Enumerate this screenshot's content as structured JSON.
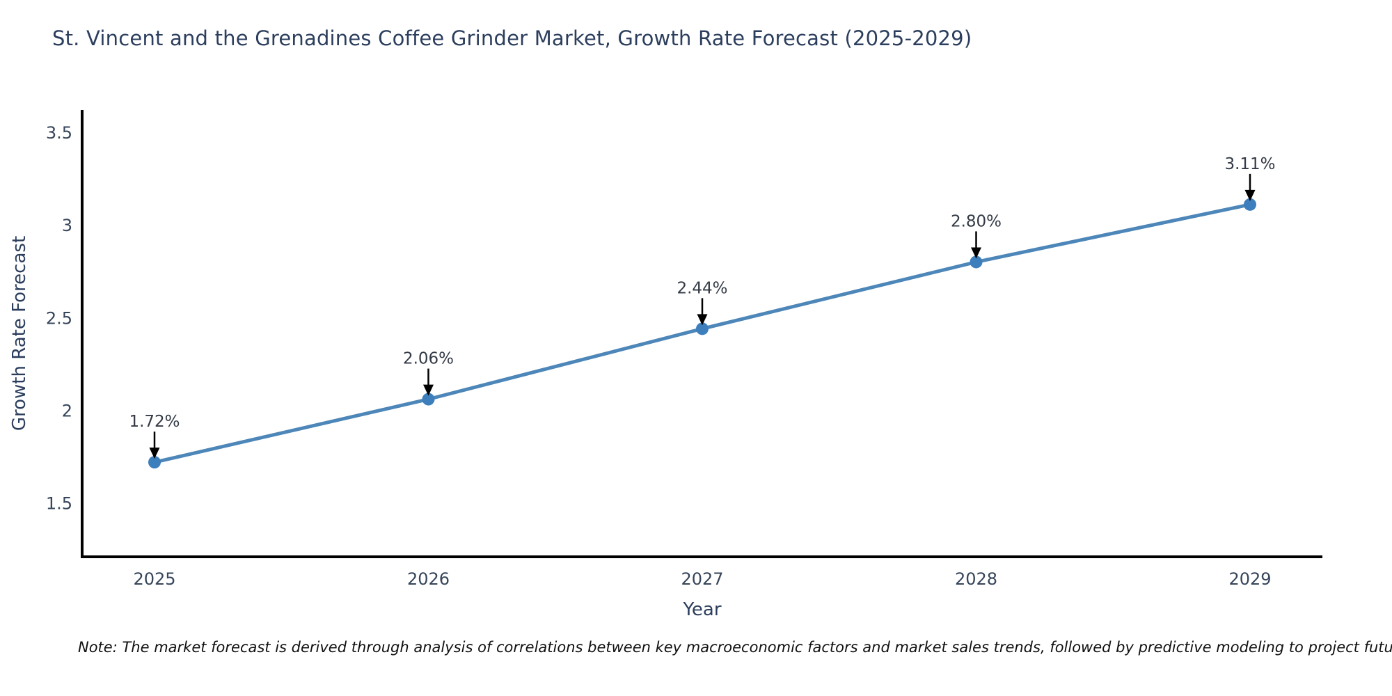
{
  "chart_data": {
    "type": "line",
    "title": "St. Vincent and the Grenadines Coffee Grinder Market, Growth Rate Forecast (2025-2029)",
    "xlabel": "Year",
    "ylabel": "Growth Rate Forecast",
    "categories": [
      "2025",
      "2026",
      "2027",
      "2028",
      "2029"
    ],
    "values": [
      1.72,
      2.06,
      2.44,
      2.8,
      3.11
    ],
    "point_labels": [
      "1.72%",
      "2.06%",
      "2.44%",
      "2.80%",
      "3.11%"
    ],
    "yticks": [
      1.5,
      2.0,
      2.5,
      3.0,
      3.5
    ],
    "ytick_labels": [
      "1.5",
      "2",
      "2.5",
      "3",
      "3.5"
    ],
    "ylim": [
      1.21,
      3.62
    ],
    "grid": false,
    "legend": "none",
    "annotation_style": "black-down-arrow-to-point",
    "colors": {
      "line": "#4d86b8",
      "marker": "#3d7ebd",
      "arrow": "#000000",
      "axis": "#000000",
      "title_text": "#2c3e5d",
      "tick_text": "#36455a",
      "label_text": "#333a45",
      "note_text": "#111111"
    }
  },
  "note": {
    "text": "Note: The market forecast is derived through analysis of correlations between key macroeconomic factors and market sales trends, followed by predictive modeling to project future sales"
  }
}
